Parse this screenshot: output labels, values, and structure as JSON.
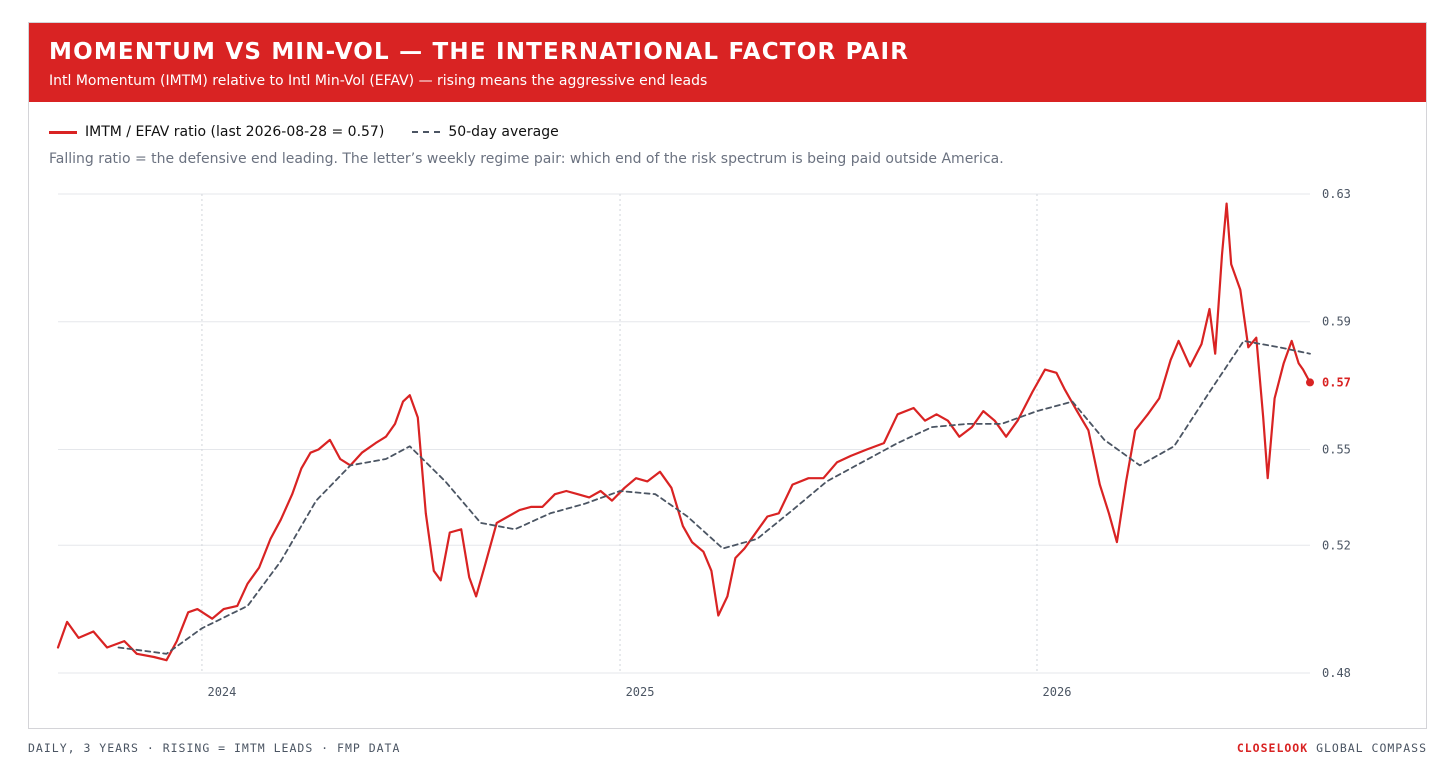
{
  "header": {
    "title": "MOMENTUM VS MIN-VOL — THE INTERNATIONAL FACTOR PAIR",
    "subtitle": "Intl Momentum (IMTM) relative to Intl Min-Vol (EFAV) — rising means the aggressive end leads"
  },
  "legend": {
    "ratio_label": "IMTM / EFAV ratio (last 2026-08-28 = 0.57)",
    "avg_label": "50-day average"
  },
  "note": "Falling ratio = the defensive end leading. The letter’s weekly regime pair: which end of the risk spectrum is being paid outside America.",
  "footer": {
    "left": "DAILY, 3 YEARS · RISING = IMTM LEADS · FMP DATA",
    "brand": "CLOSELOOK",
    "right": " GLOBAL COMPASS"
  },
  "colors": {
    "accent": "#d92323",
    "average": "#4b5563",
    "grid": "#e5e7eb"
  },
  "chart_data": {
    "type": "line",
    "x_start": "2023-08-28",
    "x_end": "2026-08-28",
    "xticks": [
      {
        "date": "2024-01-01",
        "label": "2024"
      },
      {
        "date": "2025-01-01",
        "label": "2025"
      },
      {
        "date": "2026-01-01",
        "label": "2026"
      }
    ],
    "ylim": [
      0.48,
      0.63
    ],
    "yticks": [
      0.48,
      0.52,
      0.55,
      0.59,
      0.63
    ],
    "ytick_labels": [
      "0.48",
      "0.52",
      "0.55",
      "0.59",
      "0.63"
    ],
    "grid": true,
    "last_value_label": "0.57",
    "series": [
      {
        "name": "IMTM / EFAV ratio (last 2026-08-28 = 0.57)",
        "style": "solid",
        "points": [
          [
            "2023-08-28",
            0.488
          ],
          [
            "2023-09-05",
            0.496
          ],
          [
            "2023-09-15",
            0.491
          ],
          [
            "2023-09-28",
            0.493
          ],
          [
            "2023-10-10",
            0.488
          ],
          [
            "2023-10-25",
            0.49
          ],
          [
            "2023-11-05",
            0.486
          ],
          [
            "2023-11-20",
            0.485
          ],
          [
            "2023-12-01",
            0.484
          ],
          [
            "2023-12-10",
            0.49
          ],
          [
            "2023-12-20",
            0.499
          ],
          [
            "2023-12-28",
            0.5
          ],
          [
            "2024-01-10",
            0.497
          ],
          [
            "2024-01-20",
            0.5
          ],
          [
            "2024-02-01",
            0.501
          ],
          [
            "2024-02-10",
            0.508
          ],
          [
            "2024-02-20",
            0.513
          ],
          [
            "2024-03-01",
            0.522
          ],
          [
            "2024-03-10",
            0.528
          ],
          [
            "2024-03-20",
            0.536
          ],
          [
            "2024-03-28",
            0.544
          ],
          [
            "2024-04-05",
            0.549
          ],
          [
            "2024-04-12",
            0.55
          ],
          [
            "2024-04-22",
            0.553
          ],
          [
            "2024-05-01",
            0.547
          ],
          [
            "2024-05-10",
            0.545
          ],
          [
            "2024-05-20",
            0.549
          ],
          [
            "2024-06-01",
            0.552
          ],
          [
            "2024-06-10",
            0.554
          ],
          [
            "2024-06-18",
            0.558
          ],
          [
            "2024-06-25",
            0.565
          ],
          [
            "2024-07-01",
            0.567
          ],
          [
            "2024-07-08",
            0.56
          ],
          [
            "2024-07-15",
            0.53
          ],
          [
            "2024-07-22",
            0.512
          ],
          [
            "2024-07-28",
            0.509
          ],
          [
            "2024-08-05",
            0.524
          ],
          [
            "2024-08-15",
            0.525
          ],
          [
            "2024-08-22",
            0.51
          ],
          [
            "2024-08-28",
            0.504
          ],
          [
            "2024-09-05",
            0.514
          ],
          [
            "2024-09-15",
            0.527
          ],
          [
            "2024-09-25",
            0.529
          ],
          [
            "2024-10-05",
            0.531
          ],
          [
            "2024-10-15",
            0.532
          ],
          [
            "2024-10-25",
            0.532
          ],
          [
            "2024-11-05",
            0.536
          ],
          [
            "2024-11-15",
            0.537
          ],
          [
            "2024-11-25",
            0.536
          ],
          [
            "2024-12-05",
            0.535
          ],
          [
            "2024-12-15",
            0.537
          ],
          [
            "2024-12-25",
            0.534
          ],
          [
            "2025-01-05",
            0.538
          ],
          [
            "2025-01-15",
            0.541
          ],
          [
            "2025-01-25",
            0.54
          ],
          [
            "2025-02-05",
            0.543
          ],
          [
            "2025-02-15",
            0.538
          ],
          [
            "2025-02-25",
            0.526
          ],
          [
            "2025-03-05",
            0.521
          ],
          [
            "2025-03-15",
            0.518
          ],
          [
            "2025-03-22",
            0.512
          ],
          [
            "2025-03-28",
            0.498
          ],
          [
            "2025-04-05",
            0.504
          ],
          [
            "2025-04-12",
            0.516
          ],
          [
            "2025-04-20",
            0.519
          ],
          [
            "2025-04-28",
            0.523
          ],
          [
            "2025-05-10",
            0.529
          ],
          [
            "2025-05-20",
            0.53
          ],
          [
            "2025-06-01",
            0.539
          ],
          [
            "2025-06-15",
            0.541
          ],
          [
            "2025-06-28",
            0.541
          ],
          [
            "2025-07-10",
            0.546
          ],
          [
            "2025-07-22",
            0.548
          ],
          [
            "2025-08-05",
            0.55
          ],
          [
            "2025-08-20",
            0.552
          ],
          [
            "2025-09-01",
            0.561
          ],
          [
            "2025-09-15",
            0.563
          ],
          [
            "2025-09-25",
            0.559
          ],
          [
            "2025-10-05",
            0.561
          ],
          [
            "2025-10-15",
            0.559
          ],
          [
            "2025-10-25",
            0.554
          ],
          [
            "2025-11-05",
            0.557
          ],
          [
            "2025-11-15",
            0.562
          ],
          [
            "2025-11-25",
            0.559
          ],
          [
            "2025-12-05",
            0.554
          ],
          [
            "2025-12-15",
            0.559
          ],
          [
            "2025-12-28",
            0.568
          ],
          [
            "2026-01-08",
            0.575
          ],
          [
            "2026-01-18",
            0.574
          ],
          [
            "2026-01-25",
            0.569
          ],
          [
            "2026-02-05",
            0.562
          ],
          [
            "2026-02-15",
            0.556
          ],
          [
            "2026-02-25",
            0.539
          ],
          [
            "2026-03-05",
            0.53
          ],
          [
            "2026-03-12",
            0.521
          ],
          [
            "2026-03-20",
            0.54
          ],
          [
            "2026-03-28",
            0.556
          ],
          [
            "2026-04-08",
            0.561
          ],
          [
            "2026-04-18",
            0.566
          ],
          [
            "2026-04-28",
            0.578
          ],
          [
            "2026-05-05",
            0.584
          ],
          [
            "2026-05-15",
            0.576
          ],
          [
            "2026-05-25",
            0.583
          ],
          [
            "2026-06-01",
            0.594
          ],
          [
            "2026-06-06",
            0.58
          ],
          [
            "2026-06-12",
            0.611
          ],
          [
            "2026-06-16",
            0.627
          ],
          [
            "2026-06-20",
            0.608
          ],
          [
            "2026-06-28",
            0.6
          ],
          [
            "2026-07-05",
            0.582
          ],
          [
            "2026-07-12",
            0.585
          ],
          [
            "2026-07-18",
            0.56
          ],
          [
            "2026-07-22",
            0.541
          ],
          [
            "2026-07-28",
            0.566
          ],
          [
            "2026-08-05",
            0.577
          ],
          [
            "2026-08-12",
            0.584
          ],
          [
            "2026-08-18",
            0.577
          ],
          [
            "2026-08-22",
            0.575
          ],
          [
            "2026-08-28",
            0.571
          ]
        ]
      },
      {
        "name": "50-day average",
        "style": "dashed",
        "points": [
          [
            "2023-10-20",
            0.488
          ],
          [
            "2023-11-10",
            0.487
          ],
          [
            "2023-12-01",
            0.486
          ],
          [
            "2024-01-01",
            0.494
          ],
          [
            "2024-02-10",
            0.501
          ],
          [
            "2024-03-10",
            0.515
          ],
          [
            "2024-04-10",
            0.534
          ],
          [
            "2024-05-10",
            0.545
          ],
          [
            "2024-06-10",
            0.547
          ],
          [
            "2024-07-01",
            0.551
          ],
          [
            "2024-08-01",
            0.54
          ],
          [
            "2024-09-01",
            0.527
          ],
          [
            "2024-10-01",
            0.525
          ],
          [
            "2024-11-01",
            0.53
          ],
          [
            "2024-12-01",
            0.533
          ],
          [
            "2025-01-01",
            0.537
          ],
          [
            "2025-02-01",
            0.536
          ],
          [
            "2025-03-01",
            0.529
          ],
          [
            "2025-04-01",
            0.519
          ],
          [
            "2025-05-01",
            0.522
          ],
          [
            "2025-06-01",
            0.531
          ],
          [
            "2025-07-01",
            0.54
          ],
          [
            "2025-08-01",
            0.546
          ],
          [
            "2025-09-01",
            0.552
          ],
          [
            "2025-10-01",
            0.557
          ],
          [
            "2025-11-01",
            0.558
          ],
          [
            "2025-12-01",
            0.558
          ],
          [
            "2026-01-01",
            0.562
          ],
          [
            "2026-02-01",
            0.565
          ],
          [
            "2026-03-01",
            0.553
          ],
          [
            "2026-04-01",
            0.545
          ],
          [
            "2026-05-01",
            0.551
          ],
          [
            "2026-06-01",
            0.568
          ],
          [
            "2026-07-01",
            0.584
          ],
          [
            "2026-08-01",
            0.582
          ],
          [
            "2026-08-28",
            0.58
          ]
        ]
      }
    ]
  }
}
